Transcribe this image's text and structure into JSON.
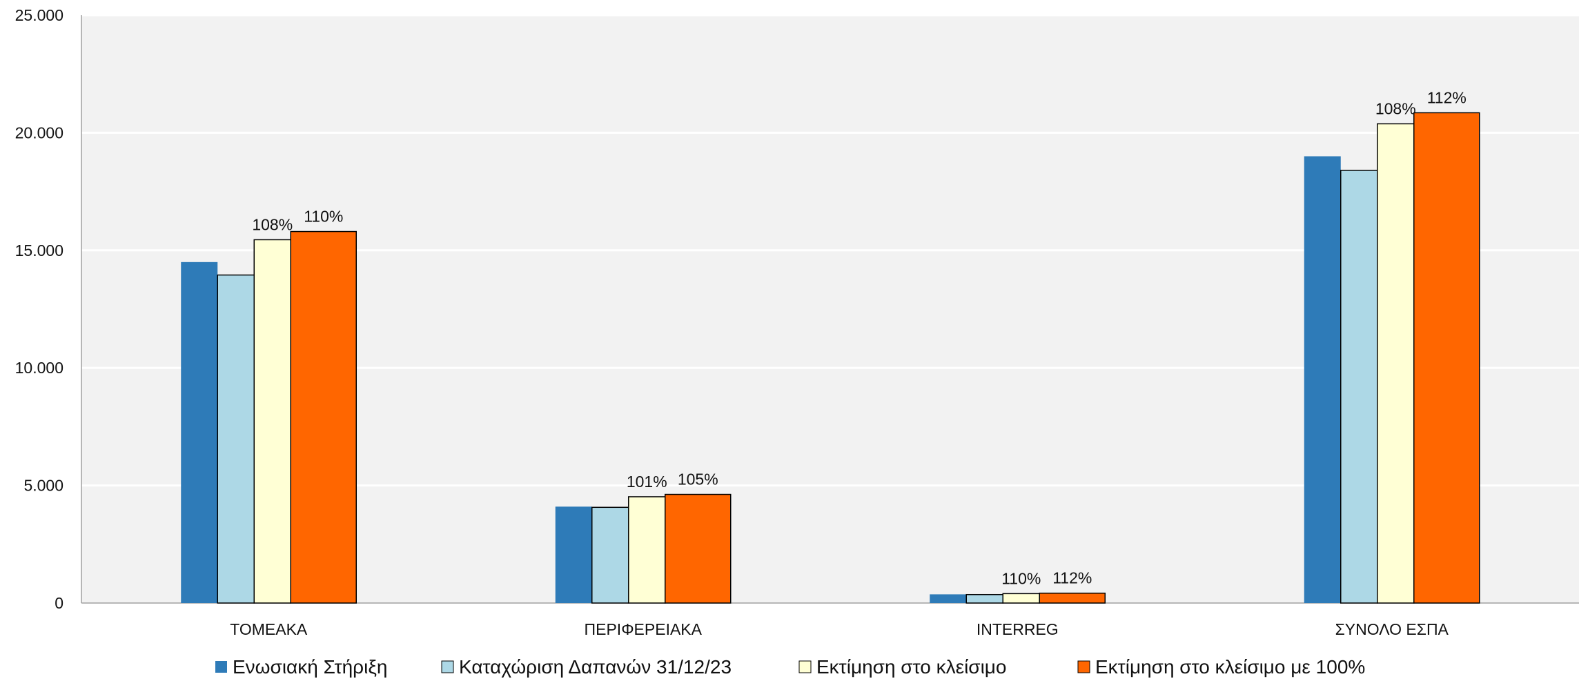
{
  "chart_data": {
    "type": "bar",
    "categories": [
      "ΤΟΜΕΑΚΑ",
      "ΠΕΡΙΦΕΡΕΙΑΚΑ",
      "INTERREG",
      "ΣΥΝΟΛΟ ΕΣΠΑ"
    ],
    "series": [
      {
        "name": "Ενωσιακή Στήριξη",
        "color": "#2E7BB8",
        "values": [
          14500,
          4100,
          370,
          19000
        ]
      },
      {
        "name": "Καταχώριση Δαπανών 31/12/23",
        "color": "#ADD8E6",
        "values": [
          13950,
          4070,
          360,
          18400
        ]
      },
      {
        "name": "Εκτίμηση  στο κλείσιμο",
        "color": "#FFFFD5",
        "values": [
          15450,
          4520,
          400,
          20380
        ]
      },
      {
        "name": "Εκτίμηση  στο κλείσιμο με 100%",
        "color": "#FF6600",
        "values": [
          15800,
          4620,
          420,
          20850
        ]
      }
    ],
    "data_labels": [
      {
        "category": "ΤΟΜΕΑΚΑ",
        "series": 2,
        "text": "108%"
      },
      {
        "category": "ΤΟΜΕΑΚΑ",
        "series": 3,
        "text": "110%"
      },
      {
        "category": "ΠΕΡΙΦΕΡΕΙΑΚΑ",
        "series": 2,
        "text": "101%"
      },
      {
        "category": "ΠΕΡΙΦΕΡΕΙΑΚΑ",
        "series": 3,
        "text": "105%"
      },
      {
        "category": "INTERREG",
        "series": 2,
        "text": "110%"
      },
      {
        "category": "INTERREG",
        "series": 3,
        "text": "112%"
      },
      {
        "category": "ΣΥΝΟΛΟ ΕΣΠΑ",
        "series": 2,
        "text": "108%"
      },
      {
        "category": "ΣΥΝΟΛΟ ΕΣΠΑ",
        "series": 3,
        "text": "112%"
      }
    ],
    "yticks": [
      "0",
      "5.000",
      "10.000",
      "15.000",
      "20.000",
      "25.000"
    ],
    "ylim": [
      0,
      25000
    ],
    "title": "",
    "xlabel": "",
    "ylabel": "",
    "grid": true,
    "legend_position": "bottom"
  }
}
